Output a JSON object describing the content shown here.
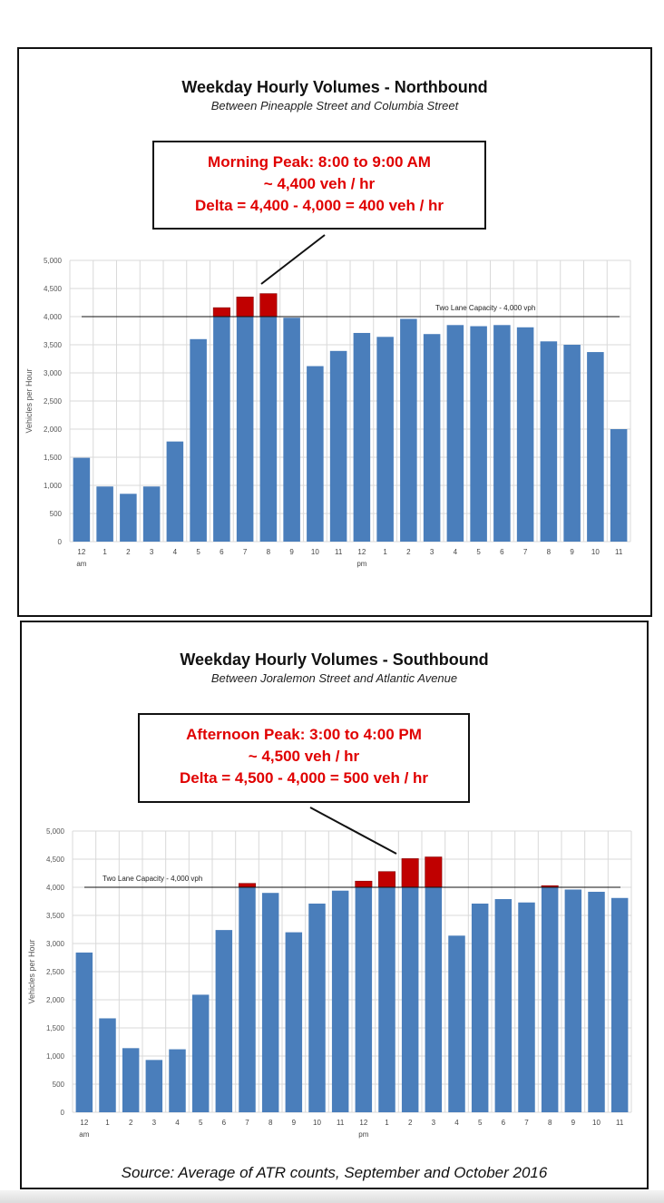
{
  "chart_data": [
    {
      "type": "bar",
      "title": "Weekday Hourly Volumes - Northbound",
      "subtitle": "Between Pineapple Street and Columbia Street",
      "ylabel": "Vehicles per Hour",
      "xlabel": "",
      "ylim": [
        0,
        5000
      ],
      "yticks": [
        "0",
        "500",
        "1,000",
        "1,500",
        "2,000",
        "2,500",
        "3,000",
        "3,500",
        "4,000",
        "4,500",
        "5,000"
      ],
      "categories": [
        "12",
        "1",
        "2",
        "3",
        "4",
        "5",
        "6",
        "7",
        "8",
        "9",
        "10",
        "11",
        "12",
        "1",
        "2",
        "3",
        "4",
        "5",
        "6",
        "7",
        "8",
        "9",
        "10",
        "11"
      ],
      "period_labels": {
        "am": "am",
        "pm": "pm"
      },
      "values": [
        1490,
        980,
        850,
        980,
        1780,
        3600,
        4160,
        4350,
        4410,
        3980,
        3120,
        3390,
        3710,
        3640,
        3960,
        3690,
        3850,
        3830,
        3850,
        3810,
        3560,
        3500,
        3370,
        2000
      ],
      "capacity": {
        "value": 4000,
        "label": "Two Lane Capacity - 4,000 vph"
      },
      "grid": true,
      "annotation": [
        "Morning Peak: 8:00 to 9:00 AM",
        "~ 4,400 veh / hr",
        "Delta = 4,400 - 4,000 = 400 veh / hr"
      ]
    },
    {
      "type": "bar",
      "title": "Weekday Hourly Volumes - Southbound",
      "subtitle": "Between Joralemon Street and Atlantic Avenue",
      "ylabel": "Vehicles per Hour",
      "xlabel": "",
      "ylim": [
        0,
        5000
      ],
      "yticks": [
        "0",
        "500",
        "1,000",
        "1,500",
        "2,000",
        "2,500",
        "3,000",
        "3,500",
        "4,000",
        "4,500",
        "5,000"
      ],
      "categories": [
        "12",
        "1",
        "2",
        "3",
        "4",
        "5",
        "6",
        "7",
        "8",
        "9",
        "10",
        "11",
        "12",
        "1",
        "2",
        "3",
        "4",
        "5",
        "6",
        "7",
        "8",
        "9",
        "10",
        "11"
      ],
      "period_labels": {
        "am": "am",
        "pm": "pm"
      },
      "values": [
        2840,
        1670,
        1140,
        930,
        1120,
        2090,
        3240,
        4070,
        3900,
        3200,
        3710,
        3940,
        4110,
        4280,
        4510,
        4540,
        3140,
        3710,
        3790,
        3730,
        4030,
        3960,
        3920,
        3810
      ],
      "capacity": {
        "value": 4000,
        "label": "Two Lane Capacity - 4,000 vph"
      },
      "grid": true,
      "annotation": [
        "Afternoon Peak: 3:00 to 4:00 PM",
        "~ 4,500 veh / hr",
        "Delta = 4,500 - 4,000 = 500 veh / hr"
      ]
    }
  ],
  "source": "Source: Average of ATR counts, September and October 2016",
  "colors": {
    "bar": "#4a7ebb",
    "over_capacity": "#c00000",
    "callout_text": "#e00000",
    "grid": "#d9d9d9"
  }
}
